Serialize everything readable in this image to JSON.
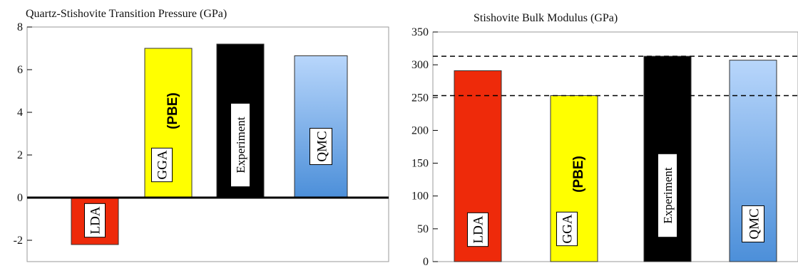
{
  "chart_data": [
    {
      "type": "bar",
      "title": "Quartz-Stishovite Transition Pressure (GPa)",
      "categories": [
        "LDA",
        "GGA",
        "Experiment",
        "QMC"
      ],
      "values": [
        -2.2,
        7.0,
        7.2,
        6.65
      ],
      "colors": [
        "#ee2a0a",
        "#ffff00",
        "#000000",
        "#6aa8e8"
      ],
      "ylim": [
        -3,
        8
      ],
      "yticks": [
        -2,
        0,
        2,
        4,
        6,
        8
      ],
      "zero_line": true,
      "annotations": {
        "gga_sub": "(PBE)"
      }
    },
    {
      "type": "bar",
      "title": "Stishovite Bulk Modulus (GPa)",
      "categories": [
        "LDA",
        "GGA",
        "Experiment",
        "QMC"
      ],
      "values": [
        291,
        253,
        313,
        307
      ],
      "colors": [
        "#ee2a0a",
        "#ffff00",
        "#000000",
        "#6aa8e8"
      ],
      "ylim": [
        0,
        350
      ],
      "yticks": [
        0,
        50,
        100,
        150,
        200,
        250,
        300,
        350
      ],
      "reference_lines": [
        313,
        253
      ],
      "annotations": {
        "gga_sub": "(PBE)"
      }
    }
  ]
}
